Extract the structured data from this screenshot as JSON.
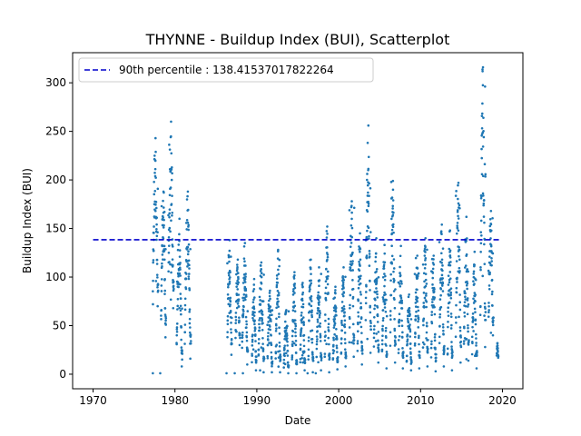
{
  "chart_data": {
    "type": "scatter",
    "title": "THYNNE - Buildup Index (BUI), Scatterplot",
    "xlabel": "Date",
    "ylabel": "Buildup Index (BUI)",
    "xlim": [
      1967.5,
      2022.5
    ],
    "ylim": [
      -15,
      331
    ],
    "x_ticks": [
      1970,
      1980,
      1990,
      2000,
      2010,
      2020
    ],
    "y_ticks": [
      0,
      50,
      100,
      150,
      200,
      250,
      300
    ],
    "legend": {
      "placement": "top-left",
      "entries": [
        "90th percentile : 138.41537017822264"
      ]
    },
    "reference_line": {
      "y": 138.41537017822264,
      "x_start": 1970,
      "x_end": 2019.8,
      "style": "dashed",
      "color": "#0000cc"
    },
    "point_color": "#1f77b4",
    "season_clusters": [
      {
        "start": 1977.3,
        "end": 1977.95,
        "min": 70,
        "max": 243
      },
      {
        "start": 1978.3,
        "end": 1978.9,
        "min": 38,
        "max": 188
      },
      {
        "start": 1979.2,
        "end": 1979.85,
        "min": 68,
        "max": 260
      },
      {
        "start": 1980.2,
        "end": 1980.9,
        "min": 8,
        "max": 160
      },
      {
        "start": 1981.2,
        "end": 1981.95,
        "min": 16,
        "max": 188
      },
      {
        "start": 1986.4,
        "end": 1986.95,
        "min": 20,
        "max": 138
      },
      {
        "start": 1987.4,
        "end": 1987.95,
        "min": 30,
        "max": 118
      },
      {
        "start": 1988.2,
        "end": 1988.9,
        "min": 10,
        "max": 135
      },
      {
        "start": 1989.4,
        "end": 1989.95,
        "min": 4,
        "max": 98
      },
      {
        "start": 1990.2,
        "end": 1990.9,
        "min": 2,
        "max": 115
      },
      {
        "start": 1991.3,
        "end": 1991.9,
        "min": 2,
        "max": 86
      },
      {
        "start": 1992.3,
        "end": 1992.9,
        "min": 2,
        "max": 128
      },
      {
        "start": 1993.3,
        "end": 1993.9,
        "min": 1,
        "max": 66
      },
      {
        "start": 1994.3,
        "end": 1994.9,
        "min": 1,
        "max": 105
      },
      {
        "start": 1995.3,
        "end": 1995.9,
        "min": 4,
        "max": 94
      },
      {
        "start": 1996.3,
        "end": 1996.9,
        "min": 2,
        "max": 118
      },
      {
        "start": 1997.3,
        "end": 1997.9,
        "min": 4,
        "max": 110
      },
      {
        "start": 1998.3,
        "end": 1998.9,
        "min": 2,
        "max": 152
      },
      {
        "start": 1999.3,
        "end": 1999.9,
        "min": 5,
        "max": 90
      },
      {
        "start": 2000.3,
        "end": 2000.9,
        "min": 8,
        "max": 110
      },
      {
        "start": 2001.3,
        "end": 2001.9,
        "min": 18,
        "max": 178
      },
      {
        "start": 2002.3,
        "end": 2002.9,
        "min": 10,
        "max": 145
      },
      {
        "start": 2003.3,
        "end": 2003.95,
        "min": 22,
        "max": 256
      },
      {
        "start": 2004.3,
        "end": 2004.9,
        "min": 12,
        "max": 140
      },
      {
        "start": 2005.3,
        "end": 2005.9,
        "min": 6,
        "max": 133
      },
      {
        "start": 2006.3,
        "end": 2006.95,
        "min": 12,
        "max": 199
      },
      {
        "start": 2007.3,
        "end": 2007.9,
        "min": 6,
        "max": 132
      },
      {
        "start": 2008.3,
        "end": 2008.9,
        "min": 4,
        "max": 82
      },
      {
        "start": 2009.3,
        "end": 2009.9,
        "min": 6,
        "max": 122
      },
      {
        "start": 2010.3,
        "end": 2010.9,
        "min": 8,
        "max": 140
      },
      {
        "start": 2011.3,
        "end": 2011.9,
        "min": 3,
        "max": 122
      },
      {
        "start": 2012.3,
        "end": 2012.9,
        "min": 8,
        "max": 154
      },
      {
        "start": 2013.3,
        "end": 2013.9,
        "min": 4,
        "max": 148
      },
      {
        "start": 2014.3,
        "end": 2014.95,
        "min": 12,
        "max": 197
      },
      {
        "start": 2015.3,
        "end": 2015.9,
        "min": 14,
        "max": 162
      },
      {
        "start": 2016.3,
        "end": 2016.9,
        "min": 6,
        "max": 126
      },
      {
        "start": 2017.3,
        "end": 2017.95,
        "min": 28,
        "max": 316
      },
      {
        "start": 2018.3,
        "end": 2018.9,
        "min": 40,
        "max": 168
      },
      {
        "start": 2019.3,
        "end": 2019.5,
        "min": 17,
        "max": 32
      }
    ],
    "low_outliers": [
      {
        "x": 1977.3,
        "y": 1
      },
      {
        "x": 1978.2,
        "y": 1
      },
      {
        "x": 1986.3,
        "y": 1
      },
      {
        "x": 1987.3,
        "y": 1
      },
      {
        "x": 1988.3,
        "y": 1
      },
      {
        "x": 1996.2,
        "y": 1
      },
      {
        "x": 1997.2,
        "y": 1
      }
    ]
  }
}
